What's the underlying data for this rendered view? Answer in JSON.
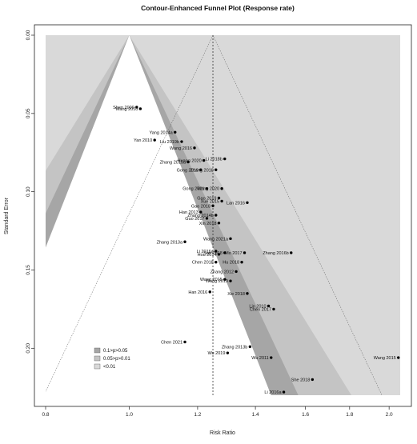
{
  "chart_data": {
    "type": "scatter",
    "title": "Contour-Enhanced Funnel Plot (Response rate)",
    "xlabel": "Risk Ratio",
    "ylabel": "Standard Error",
    "xscale": "log",
    "xlim": [
      0.8,
      2.06
    ],
    "ylim": [
      0.0,
      0.23
    ],
    "y_reversed": true,
    "x_ticks": [
      "0.8",
      "1.0",
      "1.2",
      "1.4",
      "1.6",
      "1.8",
      "2.0"
    ],
    "y_ticks": [
      "0.00",
      "0.05",
      "0.10",
      "0.15",
      "0.20"
    ],
    "pooled_estimate": 1.25,
    "legend": {
      "position": "bottom-left",
      "entries": [
        {
          "label": "0.1>p>0.05",
          "color": "#a6a6a6"
        },
        {
          "label": "0.05>p>0.01",
          "color": "#c4c4c4"
        },
        {
          "label": "<0.01",
          "color": "#d9d9d9"
        }
      ]
    },
    "colors": {
      "region_lt001": "#d9d9d9",
      "region_001_005": "#c4c4c4",
      "region_005_01": "#a6a6a6",
      "region_nonsig": "#ffffff"
    },
    "points": [
      {
        "label": "Shen 2009",
        "x": 1.02,
        "y": 0.046
      },
      {
        "label": "Wang 2010",
        "x": 1.03,
        "y": 0.047
      },
      {
        "label": "Yang 2014a",
        "x": 1.13,
        "y": 0.062
      },
      {
        "label": "Yan 2010",
        "x": 1.07,
        "y": 0.067
      },
      {
        "label": "Liu 2019b",
        "x": 1.15,
        "y": 0.068
      },
      {
        "label": "Wang 2016",
        "x": 1.19,
        "y": 0.072
      },
      {
        "label": "Li 2018b",
        "x": 1.29,
        "y": 0.079
      },
      {
        "label": "Huang 2020",
        "x": 1.22,
        "y": 0.08
      },
      {
        "label": "Zhang 2015a",
        "x": 1.17,
        "y": 0.081
      },
      {
        "label": "Gong 2019",
        "x": 1.21,
        "y": 0.086
      },
      {
        "label": "Zhang 2018",
        "x": 1.26,
        "y": 0.086
      },
      {
        "label": "Gong 2021",
        "x": 1.23,
        "y": 0.098
      },
      {
        "label": "Wang 2020",
        "x": 1.28,
        "y": 0.098
      },
      {
        "label": "Gao 2019",
        "x": 1.27,
        "y": 0.104
      },
      {
        "label": "Xue 2015",
        "x": 1.28,
        "y": 0.106
      },
      {
        "label": "Lan 2016",
        "x": 1.37,
        "y": 0.107
      },
      {
        "label": "Gao 2018",
        "x": 1.25,
        "y": 0.109
      },
      {
        "label": "Han 2013",
        "x": 1.21,
        "y": 0.113
      },
      {
        "label": "Zhang 2014b",
        "x": 1.26,
        "y": 0.115
      },
      {
        "label": "Guo 2017",
        "x": 1.23,
        "y": 0.117
      },
      {
        "label": "Xin 2018",
        "x": 1.27,
        "y": 0.12
      },
      {
        "label": "Wang 2021a",
        "x": 1.31,
        "y": 0.13
      },
      {
        "label": "Zhang 2013a",
        "x": 1.16,
        "y": 0.132
      },
      {
        "label": "Li 2016a",
        "x": 1.26,
        "y": 0.138
      },
      {
        "label": "Sun 2018",
        "x": 1.29,
        "y": 0.139
      },
      {
        "label": "Hou 2014",
        "x": 1.27,
        "y": 0.14
      },
      {
        "label": "Mo 2017",
        "x": 1.36,
        "y": 0.139
      },
      {
        "label": "Zhang 2016b",
        "x": 1.54,
        "y": 0.139
      },
      {
        "label": "Chen 2018",
        "x": 1.26,
        "y": 0.145
      },
      {
        "label": "Hu 2018",
        "x": 1.35,
        "y": 0.145
      },
      {
        "label": "Zhang 2012",
        "x": 1.33,
        "y": 0.151
      },
      {
        "label": "Wang 2015",
        "x": 1.29,
        "y": 0.156
      },
      {
        "label": "Wang 2019",
        "x": 1.31,
        "y": 0.157
      },
      {
        "label": "Han 2016",
        "x": 1.24,
        "y": 0.164
      },
      {
        "label": "Xie 2018",
        "x": 1.37,
        "y": 0.165
      },
      {
        "label": "Lin 2010",
        "x": 1.45,
        "y": 0.173
      },
      {
        "label": "Chen 2017",
        "x": 1.47,
        "y": 0.175
      },
      {
        "label": "Chen 2021",
        "x": 1.16,
        "y": 0.196
      },
      {
        "label": "Zhang 2013b",
        "x": 1.38,
        "y": 0.199
      },
      {
        "label": "Wu 2019",
        "x": 1.3,
        "y": 0.203
      },
      {
        "label": "Wu 2011",
        "x": 1.46,
        "y": 0.206
      },
      {
        "label": "Wang 2015",
        "x": 2.05,
        "y": 0.206
      },
      {
        "label": "She 2018",
        "x": 1.63,
        "y": 0.22
      },
      {
        "label": "Li 2016a",
        "x": 1.51,
        "y": 0.228
      }
    ]
  }
}
